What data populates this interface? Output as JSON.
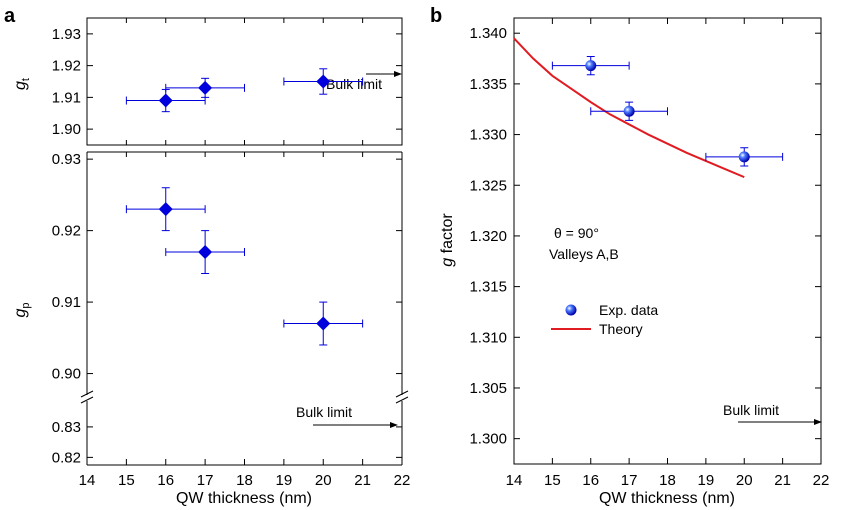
{
  "colors": {
    "marker": "#0000dd",
    "theory": "#e11b22",
    "axis": "#000000"
  },
  "chart_data": [
    {
      "panel_label": "a",
      "part": "top",
      "type": "scatter",
      "xlabel": "QW thickness (nm)",
      "ylabel": "g",
      "ylabel_sub": "t",
      "xlim": [
        14,
        22
      ],
      "ylim": [
        1.895,
        1.935
      ],
      "yticks": [
        "1.90",
        "1.91",
        "1.92",
        "1.93"
      ],
      "marker": "diamond",
      "series": [
        {
          "points": [
            {
              "x": 16,
              "y": 1.909,
              "xerr": 1,
              "yerr": 0.0035
            },
            {
              "x": 17,
              "y": 1.913,
              "xerr": 1,
              "yerr": 0.003
            },
            {
              "x": 20,
              "y": 1.915,
              "xerr": 1,
              "yerr": 0.004
            }
          ]
        }
      ],
      "annotation": "Bulk limit"
    },
    {
      "panel_label": "",
      "part": "bottom",
      "type": "scatter",
      "xlabel": "QW thickness (nm)",
      "ylabel": "g",
      "ylabel_sub": "p",
      "xlim": [
        14,
        22
      ],
      "ylim_upper": [
        0.897,
        0.931
      ],
      "ylim_lower": [
        0.8175,
        0.8385
      ],
      "yticks": [
        "0.82",
        "0.83",
        "0.90",
        "0.91",
        "0.92",
        "0.93"
      ],
      "xticks": [
        "14",
        "15",
        "16",
        "17",
        "18",
        "19",
        "20",
        "21",
        "22"
      ],
      "marker": "diamond",
      "series": [
        {
          "points": [
            {
              "x": 16,
              "y": 0.923,
              "xerr": 1,
              "yerr": 0.003
            },
            {
              "x": 17,
              "y": 0.917,
              "xerr": 1,
              "yerr": 0.003
            },
            {
              "x": 20,
              "y": 0.907,
              "xerr": 1,
              "yerr": 0.003
            }
          ]
        }
      ],
      "annotation": "Bulk limit"
    },
    {
      "panel_label": "b",
      "type": "scatter",
      "xlabel": "QW thickness (nm)",
      "ylabel": "g factor",
      "xlim": [
        14,
        22
      ],
      "ylim": [
        1.2975,
        1.3415
      ],
      "xticks": [
        "14",
        "15",
        "16",
        "17",
        "18",
        "19",
        "20",
        "21",
        "22"
      ],
      "yticks": [
        "1.300",
        "1.305",
        "1.310",
        "1.315",
        "1.320",
        "1.325",
        "1.330",
        "1.335",
        "1.340"
      ],
      "series": [
        {
          "name": "Exp. data",
          "kind": "points",
          "marker": "sphere",
          "points": [
            {
              "x": 16,
              "y": 1.3368,
              "xerr": 1,
              "yerr": 0.0009
            },
            {
              "x": 17,
              "y": 1.3323,
              "xerr": 1,
              "yerr": 0.0009
            },
            {
              "x": 20,
              "y": 1.3278,
              "xerr": 1,
              "yerr": 0.0009
            }
          ]
        },
        {
          "name": "Theory",
          "kind": "line",
          "x": [
            14,
            14.5,
            15,
            15.5,
            16,
            16.5,
            17,
            17.5,
            18,
            18.5,
            19,
            19.5,
            20
          ],
          "y": [
            1.3395,
            1.3375,
            1.3358,
            1.3345,
            1.3332,
            1.332,
            1.331,
            1.33,
            1.3291,
            1.3282,
            1.3274,
            1.3266,
            1.3258
          ]
        }
      ],
      "annotations": {
        "angle": "θ = 90°",
        "valleys": "Valleys A,B",
        "bulk": "Bulk limit"
      },
      "legend": "center-left"
    }
  ]
}
